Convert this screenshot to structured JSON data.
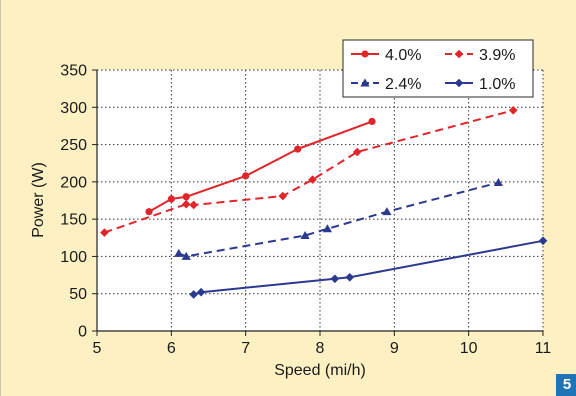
{
  "figure": {
    "badge": "5"
  },
  "chart_data": {
    "type": "line",
    "xlabel": "Speed (mi/h)",
    "ylabel": "Power (W)",
    "xlim": [
      5,
      11
    ],
    "ylim": [
      0,
      350
    ],
    "x_ticks": [
      5,
      6,
      7,
      8,
      9,
      10,
      11
    ],
    "y_ticks": [
      0,
      50,
      100,
      150,
      200,
      250,
      300,
      350
    ],
    "grid": "dotted, horizontal and vertical",
    "legend_position": "top-right",
    "series": [
      {
        "name": "4.0%",
        "color": "#e0262b",
        "dash": "solid",
        "marker": "circle",
        "points": [
          [
            5.7,
            160
          ],
          [
            6.0,
            177
          ],
          [
            6.2,
            180
          ],
          [
            7.0,
            208
          ],
          [
            7.7,
            244
          ],
          [
            8.7,
            281
          ]
        ]
      },
      {
        "name": "3.9%",
        "color": "#e0262b",
        "dash": "dashed",
        "marker": "diamond",
        "points": [
          [
            5.1,
            132
          ],
          [
            6.2,
            170
          ],
          [
            6.3,
            169
          ],
          [
            7.5,
            181
          ],
          [
            7.9,
            203
          ],
          [
            8.5,
            240
          ],
          [
            10.6,
            296
          ]
        ]
      },
      {
        "name": "2.4%",
        "color": "#2b3a8f",
        "dash": "dashed",
        "marker": "triangle",
        "points": [
          [
            6.1,
            104
          ],
          [
            6.2,
            100
          ],
          [
            7.8,
            128
          ],
          [
            8.1,
            137
          ],
          [
            8.9,
            160
          ],
          [
            10.4,
            199
          ]
        ]
      },
      {
        "name": "1.0%",
        "color": "#2b3a8f",
        "dash": "solid",
        "marker": "diamond",
        "points": [
          [
            6.3,
            49
          ],
          [
            6.4,
            52
          ],
          [
            8.2,
            70
          ],
          [
            8.4,
            72
          ],
          [
            11.0,
            121
          ]
        ]
      }
    ]
  }
}
